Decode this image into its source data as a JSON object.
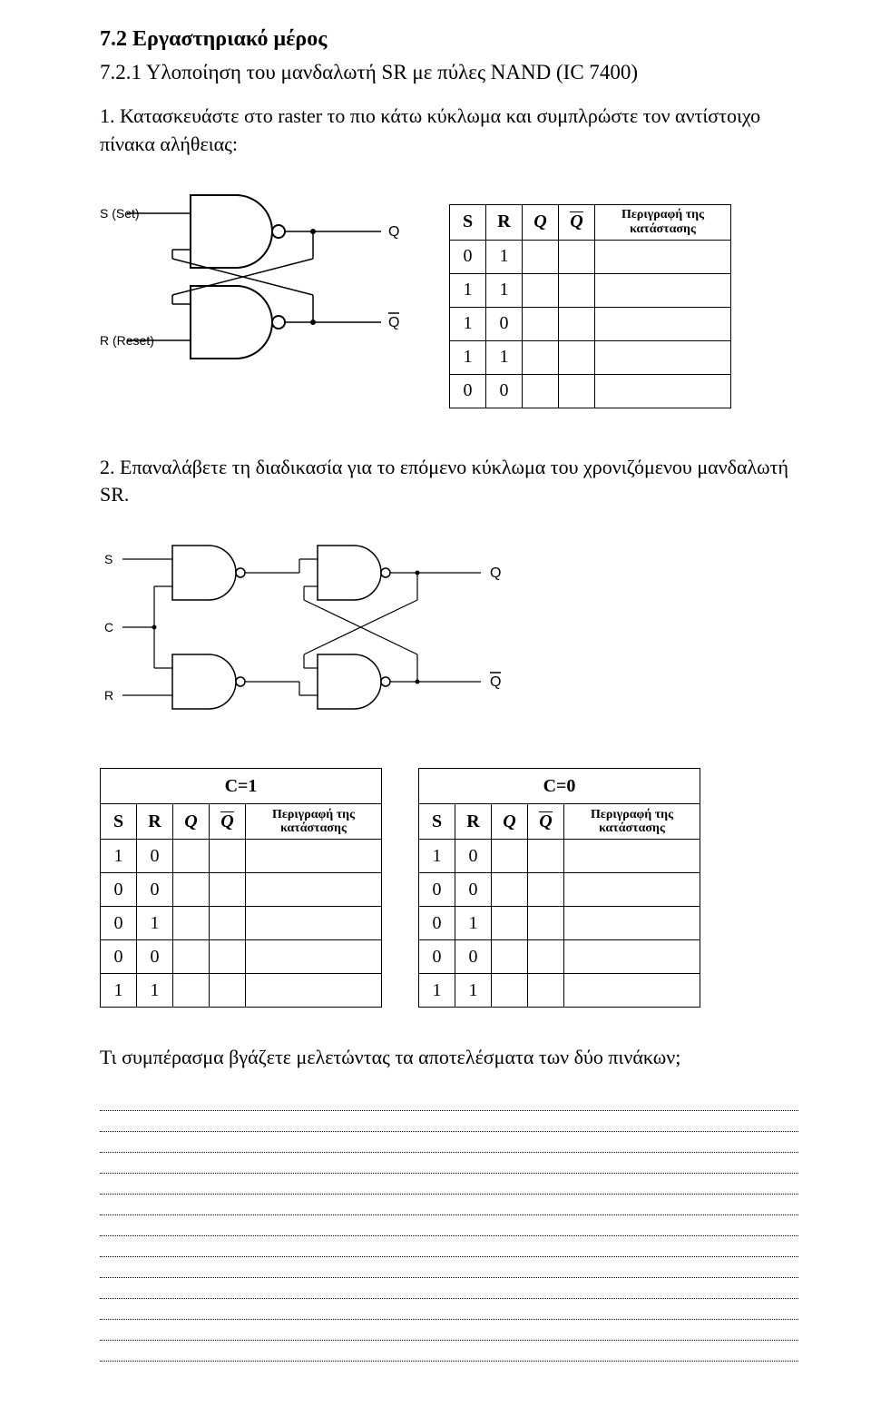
{
  "headings": {
    "section": "7.2 Εργαστηριακό μέρος",
    "subsection": "7.2.1 Υλοποίηση του μανδαλωτή SR με πύλες NAND (IC 7400)"
  },
  "paragraphs": {
    "p1": "1. Κατασκευάστε στο raster το πιο κάτω κύκλωμα και συμπλρώστε τον αντίστοιχο πίνακα αλήθειας:",
    "p2": "2. Επαναλάβετε τη διαδικασία για το επόμενο κύκλωμα του χρονιζόμενου μανδαλωτή SR.",
    "p3": "Τι συμπέρασμα βγάζετε μελετώντας τα αποτελέσματα των δύο πινάκων;"
  },
  "diagram1": {
    "labels": {
      "S": "S (Set)",
      "R": "R (Reset)",
      "Q": "Q",
      "Qb": "Q"
    }
  },
  "diagram2": {
    "labels": {
      "S": "S",
      "C": "C",
      "R": "R",
      "Q": "Q",
      "Qb": "Q"
    }
  },
  "table1": {
    "headers": {
      "S": "S",
      "R": "R",
      "Q": "Q",
      "Qb": "Q",
      "desc": "Περιγραφή της\nκατάστασης"
    },
    "col_widths": {
      "S": 40,
      "R": 40,
      "Q": 40,
      "Qb": 40,
      "desc": 150
    },
    "rows": [
      {
        "S": "0",
        "R": "1"
      },
      {
        "S": "1",
        "R": "1"
      },
      {
        "S": "1",
        "R": "0"
      },
      {
        "S": "1",
        "R": "1"
      },
      {
        "S": "0",
        "R": "0"
      }
    ]
  },
  "table2": {
    "title": "C=1",
    "headers": {
      "S": "S",
      "R": "R",
      "Q": "Q",
      "Qb": "Q",
      "desc": "Περιγραφή της\nκατάστασης"
    },
    "col_widths": {
      "S": 40,
      "R": 40,
      "Q": 40,
      "Qb": 40,
      "desc": 150
    },
    "rows": [
      {
        "S": "1",
        "R": "0"
      },
      {
        "S": "0",
        "R": "0"
      },
      {
        "S": "0",
        "R": "1"
      },
      {
        "S": "0",
        "R": "0"
      },
      {
        "S": "1",
        "R": "1"
      }
    ]
  },
  "table3": {
    "title": "C=0",
    "headers": {
      "S": "S",
      "R": "R",
      "Q": "Q",
      "Qb": "Q",
      "desc": "Περιγραφή της\nκατάστασης"
    },
    "col_widths": {
      "S": 40,
      "R": 40,
      "Q": 40,
      "Qb": 40,
      "desc": 150
    },
    "rows": [
      {
        "S": "1",
        "R": "0"
      },
      {
        "S": "0",
        "R": "0"
      },
      {
        "S": "0",
        "R": "1"
      },
      {
        "S": "0",
        "R": "0"
      },
      {
        "S": "1",
        "R": "1"
      }
    ]
  },
  "answer_lines_count": 13
}
